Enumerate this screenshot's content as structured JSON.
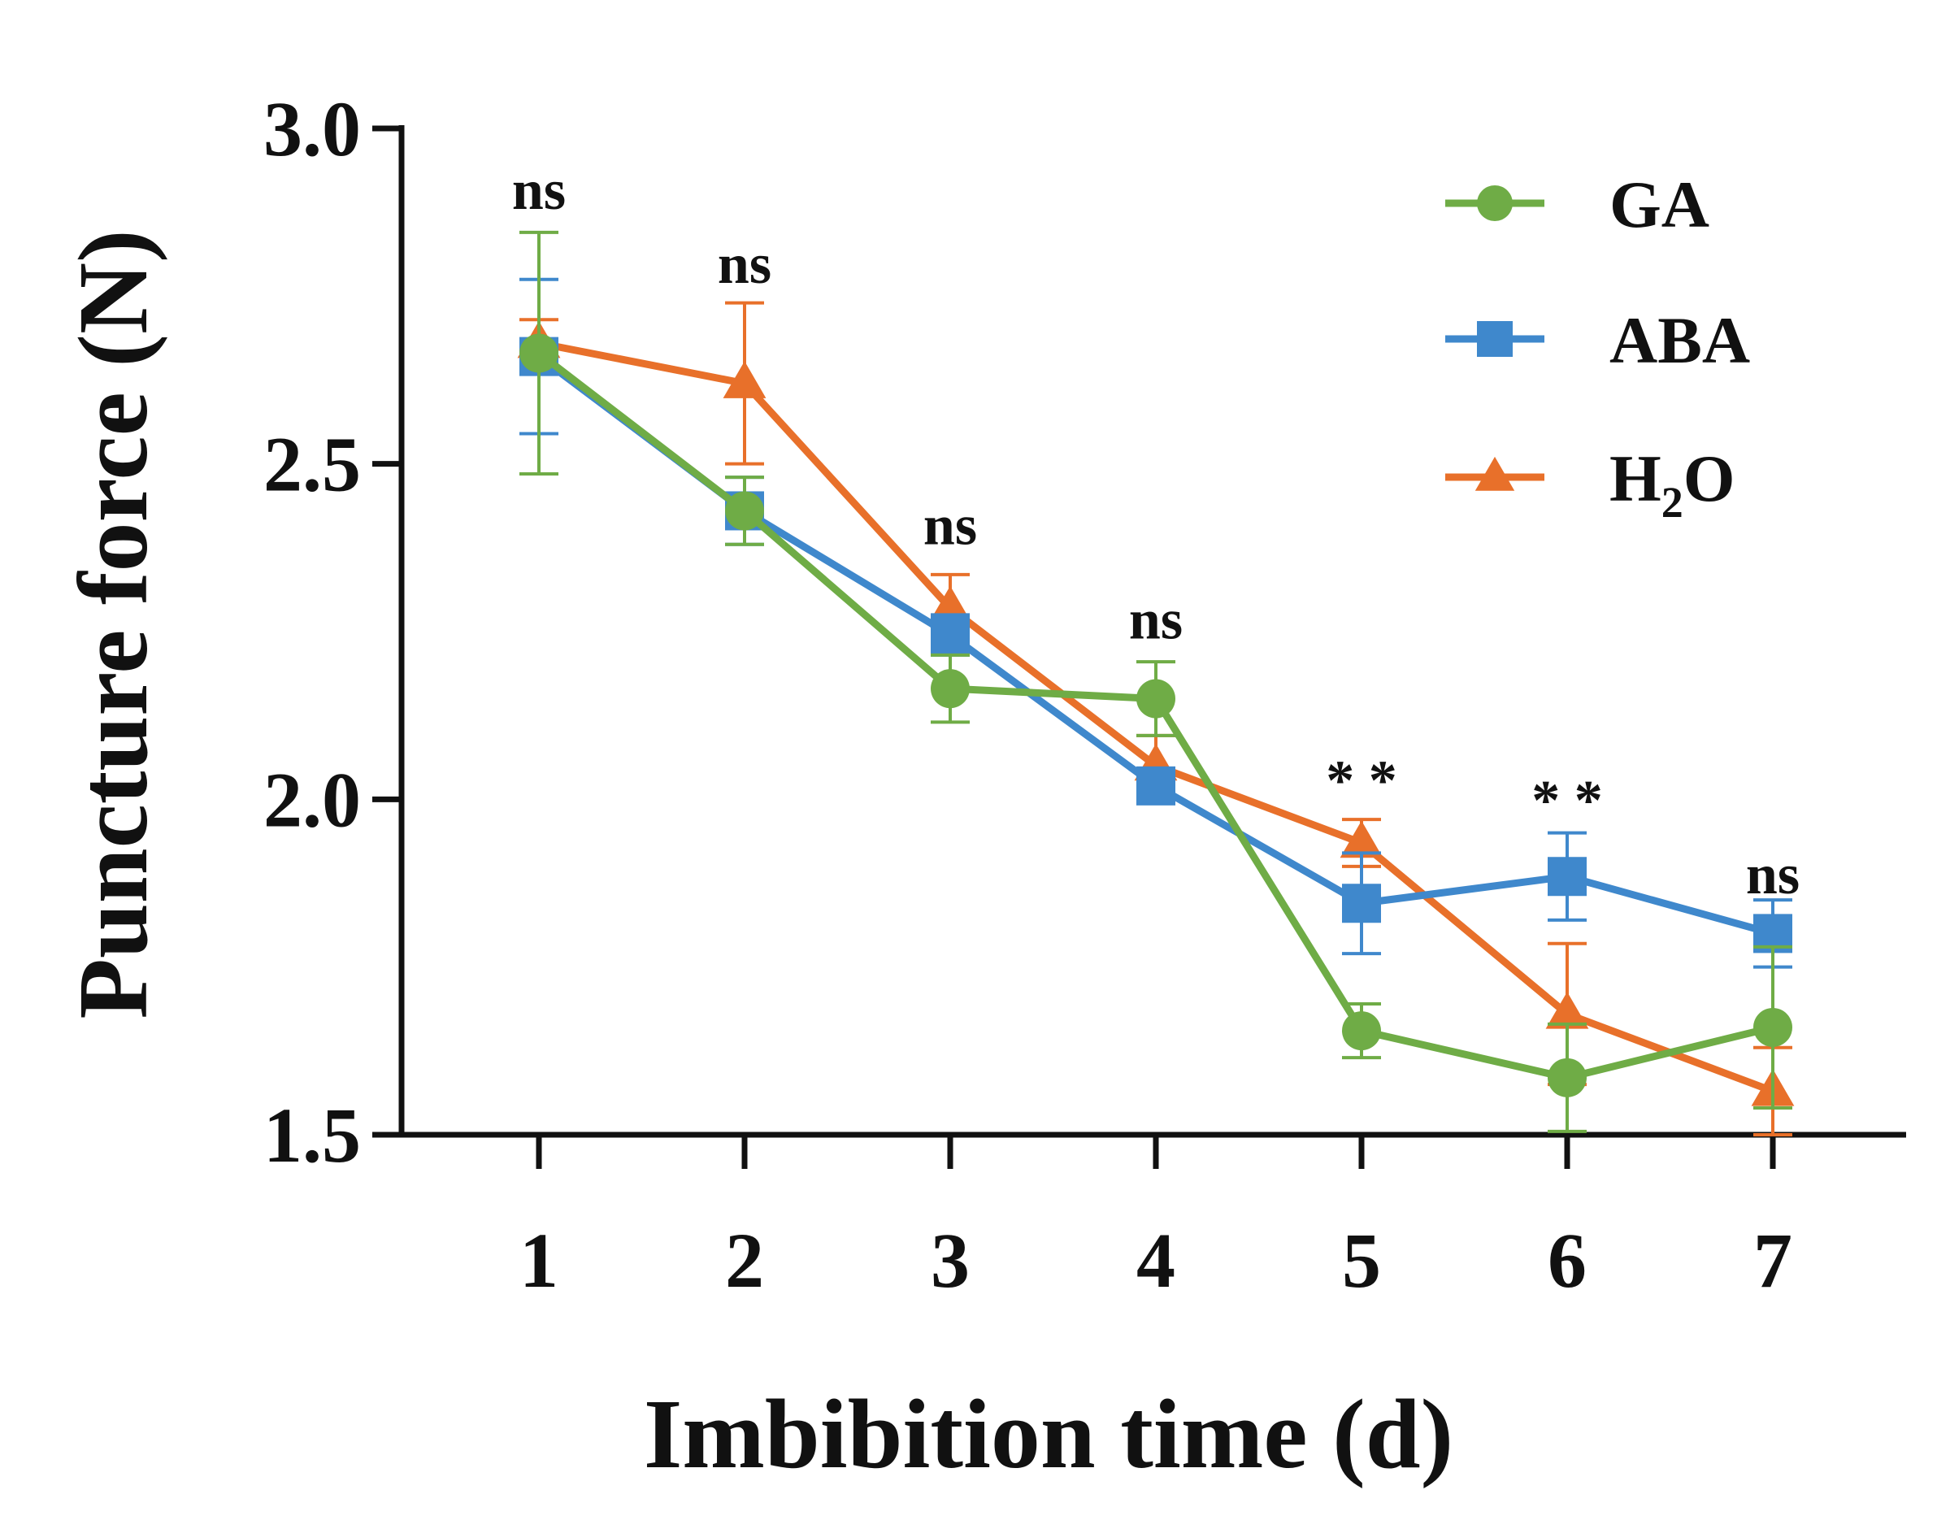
{
  "chart_data": {
    "type": "line",
    "title": "",
    "xlabel": "Imbibition time (d)",
    "ylabel": "Puncture force (N)",
    "x": [
      1,
      2,
      3,
      4,
      5,
      6,
      7
    ],
    "x_tick_labels": [
      "1",
      "2",
      "3",
      "4",
      "5",
      "6",
      "7"
    ],
    "ylim": [
      1.5,
      3.0
    ],
    "y_ticks": [
      1.5,
      2.0,
      2.5,
      3.0
    ],
    "y_tick_labels": [
      "1.5",
      "2.0",
      "2.5",
      "3.0"
    ],
    "grid": false,
    "legend_position": "top-right",
    "series": [
      {
        "name": "GA",
        "color": "#6fac46",
        "marker": "circle",
        "values": [
          2.665,
          2.43,
          2.165,
          2.15,
          1.655,
          1.585,
          1.66
        ],
        "errors": [
          0.18,
          0.05,
          0.05,
          0.055,
          0.04,
          0.08,
          0.12
        ]
      },
      {
        "name": "ABA",
        "color": "#3f88cc",
        "marker": "square",
        "values": [
          2.66,
          2.43,
          2.245,
          2.02,
          1.845,
          1.885,
          1.8
        ],
        "errors": [
          0.115,
          0.05,
          0.03,
          0.02,
          0.075,
          0.065,
          0.05
        ]
      },
      {
        "name": "H2O",
        "name_main": "H",
        "name_sub": "2",
        "name_tail": "O",
        "color": "#e8702a",
        "marker": "triangle",
        "values": [
          2.68,
          2.62,
          2.285,
          2.05,
          1.935,
          1.68,
          1.565
        ],
        "errors": [
          0.035,
          0.12,
          0.05,
          0.045,
          0.035,
          0.105,
          0.065
        ]
      }
    ],
    "annotations": [
      {
        "x": 1,
        "y": 2.88,
        "text": "ns"
      },
      {
        "x": 2,
        "y": 2.77,
        "text": "ns"
      },
      {
        "x": 3,
        "y": 2.38,
        "text": "ns"
      },
      {
        "x": 4,
        "y": 2.24,
        "text": "ns"
      },
      {
        "x": 5,
        "y": 2.0,
        "text": "* *"
      },
      {
        "x": 6,
        "y": 1.97,
        "text": "* *"
      },
      {
        "x": 7,
        "y": 1.86,
        "text": "ns"
      }
    ]
  }
}
